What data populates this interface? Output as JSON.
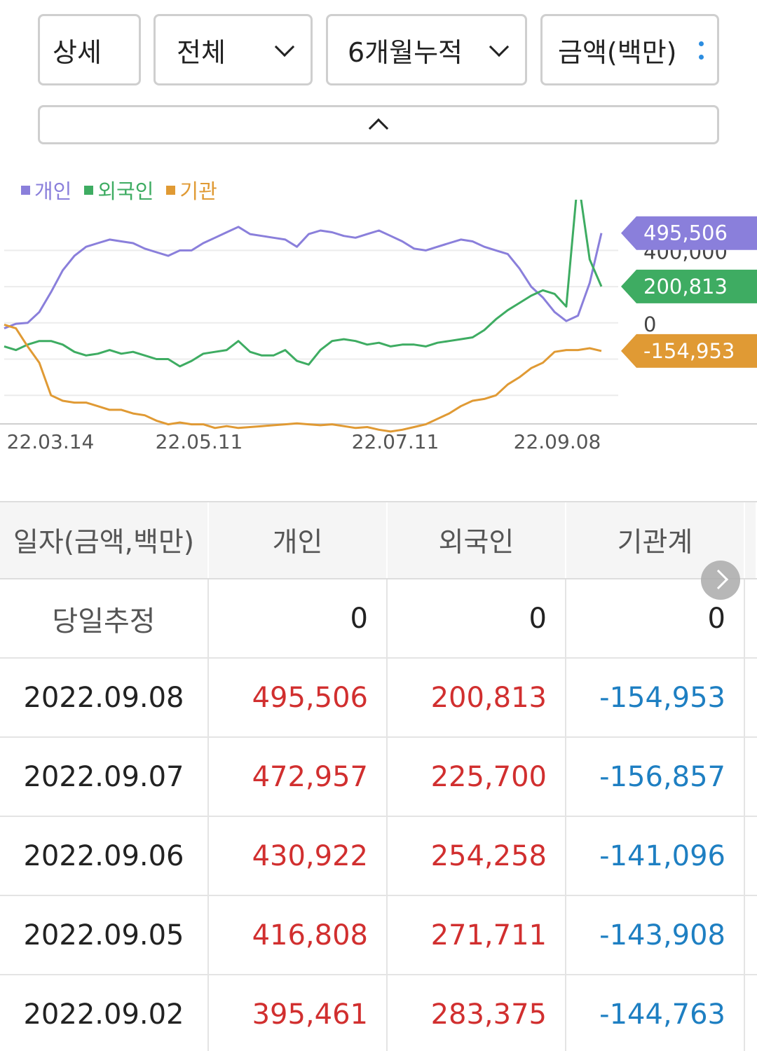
{
  "filters": {
    "detail": "상세",
    "market": "전체",
    "period": "6개월누적",
    "unit": "금액(백만)"
  },
  "legend": [
    {
      "name": "개인",
      "color": "#8a7fdb"
    },
    {
      "name": "외국인",
      "color": "#3eac62"
    },
    {
      "name": "기관",
      "color": "#e09a34"
    }
  ],
  "chart_data": {
    "type": "line",
    "x_ticks": [
      "22.03.14",
      "22.05.11",
      "22.07.11",
      "22.09.08"
    ],
    "y_ticks": [
      400000,
      0
    ],
    "y_tick_labels": [
      "400,000",
      "0"
    ],
    "ylim": [
      -550000,
      680000
    ],
    "grid": true,
    "legend_position": "top-left",
    "last_value_labels": [
      {
        "series": "개인",
        "text": "495,506",
        "color": "#8a7fdb"
      },
      {
        "series": "외국인",
        "text": "200,813",
        "color": "#3eac62"
      },
      {
        "series": "기관",
        "text": "-154,953",
        "color": "#e09a34"
      }
    ],
    "series": [
      {
        "name": "개인",
        "color": "#8a7fdb",
        "values": [
          -30000,
          -5000,
          0,
          60000,
          170000,
          290000,
          370000,
          420000,
          440000,
          460000,
          450000,
          440000,
          410000,
          390000,
          370000,
          400000,
          400000,
          440000,
          470000,
          500000,
          530000,
          490000,
          480000,
          470000,
          460000,
          420000,
          490000,
          510000,
          500000,
          480000,
          470000,
          490000,
          510000,
          480000,
          450000,
          410000,
          400000,
          420000,
          440000,
          460000,
          450000,
          420000,
          400000,
          380000,
          300000,
          200000,
          140000,
          60000,
          10000,
          40000,
          220000,
          495506
        ]
      },
      {
        "name": "외국인",
        "color": "#3eac62",
        "values": [
          -130000,
          -150000,
          -120000,
          -100000,
          -100000,
          -120000,
          -160000,
          -180000,
          -170000,
          -150000,
          -170000,
          -160000,
          -180000,
          -200000,
          -200000,
          -240000,
          -210000,
          -170000,
          -160000,
          -150000,
          -100000,
          -160000,
          -180000,
          -180000,
          -150000,
          -210000,
          -230000,
          -150000,
          -100000,
          -90000,
          -100000,
          -120000,
          -110000,
          -130000,
          -120000,
          -120000,
          -130000,
          -110000,
          -100000,
          -90000,
          -80000,
          -40000,
          20000,
          70000,
          110000,
          150000,
          180000,
          160000,
          90000,
          800000,
          350000,
          200813
        ]
      },
      {
        "name": "기관",
        "color": "#e09a34",
        "values": [
          -10000,
          -30000,
          -130000,
          -220000,
          -400000,
          -430000,
          -440000,
          -440000,
          -460000,
          -480000,
          -480000,
          -500000,
          -510000,
          -540000,
          -560000,
          -550000,
          -560000,
          -560000,
          -580000,
          -570000,
          -580000,
          -575000,
          -570000,
          -565000,
          -560000,
          -555000,
          -560000,
          -565000,
          -560000,
          -570000,
          -580000,
          -575000,
          -590000,
          -600000,
          -590000,
          -575000,
          -560000,
          -530000,
          -500000,
          -460000,
          -430000,
          -420000,
          -400000,
          -340000,
          -300000,
          -250000,
          -220000,
          -160000,
          -150000,
          -150000,
          -140000,
          -154953
        ]
      }
    ]
  },
  "table": {
    "headers": [
      "일자(금액,백만)",
      "개인",
      "외국인",
      "기관계"
    ],
    "today": {
      "label": "당일추정",
      "indiv": "0",
      "foreign": "0",
      "inst": "0"
    },
    "rows": [
      {
        "date": "2022.09.08",
        "indiv": "495,506",
        "foreign": "200,813",
        "inst": "-154,953"
      },
      {
        "date": "2022.09.07",
        "indiv": "472,957",
        "foreign": "225,700",
        "inst": "-156,857"
      },
      {
        "date": "2022.09.06",
        "indiv": "430,922",
        "foreign": "254,258",
        "inst": "-141,096"
      },
      {
        "date": "2022.09.05",
        "indiv": "416,808",
        "foreign": "271,711",
        "inst": "-143,908"
      },
      {
        "date": "2022.09.02",
        "indiv": "395,461",
        "foreign": "283,375",
        "inst": "-144,763"
      }
    ]
  },
  "colors": {
    "positive": "#d12f2f",
    "negative": "#1e7fc2"
  }
}
